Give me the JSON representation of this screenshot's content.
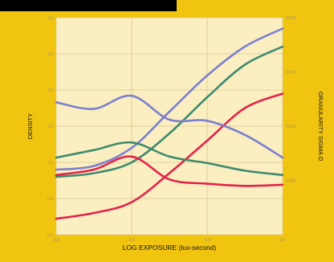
{
  "chart_data": {
    "type": "line",
    "xlabel": "LOG EXPOSURE (lux-second)",
    "ylabel_left": "DENSITY",
    "ylabel_right": "GRANULARITY SIGMA D",
    "x_range": [
      -3.0,
      0.0
    ],
    "x_ticks": [
      "-3.0",
      "-2.0",
      "-1.0",
      "0.0"
    ],
    "y_left_range": [
      0.0,
      3.0
    ],
    "y_left_ticks": [
      "0.0",
      "0.5",
      "1.0",
      "1.5",
      "2.0",
      "2.5",
      "3.0"
    ],
    "y_right_range": [
      0.0,
      0.02
    ],
    "y_right_ticks": [
      "0.005",
      "0.010",
      "0.015",
      "0.020"
    ],
    "grid": true,
    "series": [
      {
        "color": "#7b7fd0",
        "axis": "left",
        "x": [
          -3.0,
          -2.5,
          -2.0,
          -1.5,
          -1.0,
          -0.5,
          0.0
        ],
        "y": [
          0.9,
          0.95,
          1.2,
          1.7,
          2.2,
          2.6,
          2.85
        ]
      },
      {
        "color": "#3e8a6f",
        "axis": "left",
        "x": [
          -3.0,
          -2.5,
          -2.0,
          -1.5,
          -1.0,
          -0.5,
          0.0
        ],
        "y": [
          0.8,
          0.85,
          1.0,
          1.4,
          1.9,
          2.35,
          2.6
        ]
      },
      {
        "color": "#e2234a",
        "axis": "left",
        "x": [
          -3.0,
          -2.5,
          -2.0,
          -1.5,
          -1.0,
          -0.5,
          0.0
        ],
        "y": [
          0.22,
          0.3,
          0.45,
          0.85,
          1.3,
          1.75,
          1.95
        ]
      },
      {
        "color": "#7b7fd0",
        "axis": "right",
        "x": [
          -3.0,
          -2.5,
          -2.0,
          -1.5,
          -1.0,
          -0.5,
          0.0
        ],
        "y": [
          0.0122,
          0.0116,
          0.0128,
          0.0106,
          0.0105,
          0.0092,
          0.0071
        ]
      },
      {
        "color": "#3e8a6f",
        "axis": "right",
        "x": [
          -3.0,
          -2.5,
          -2.0,
          -1.5,
          -1.0,
          -0.5,
          0.0
        ],
        "y": [
          0.0071,
          0.0078,
          0.0085,
          0.0072,
          0.0066,
          0.0059,
          0.0055
        ]
      },
      {
        "color": "#e2234a",
        "axis": "right",
        "x": [
          -3.0,
          -2.5,
          -2.0,
          -1.5,
          -1.0,
          -0.5,
          0.0
        ],
        "y": [
          0.0055,
          0.006,
          0.0072,
          0.0051,
          0.0047,
          0.0045,
          0.0046
        ]
      }
    ]
  }
}
